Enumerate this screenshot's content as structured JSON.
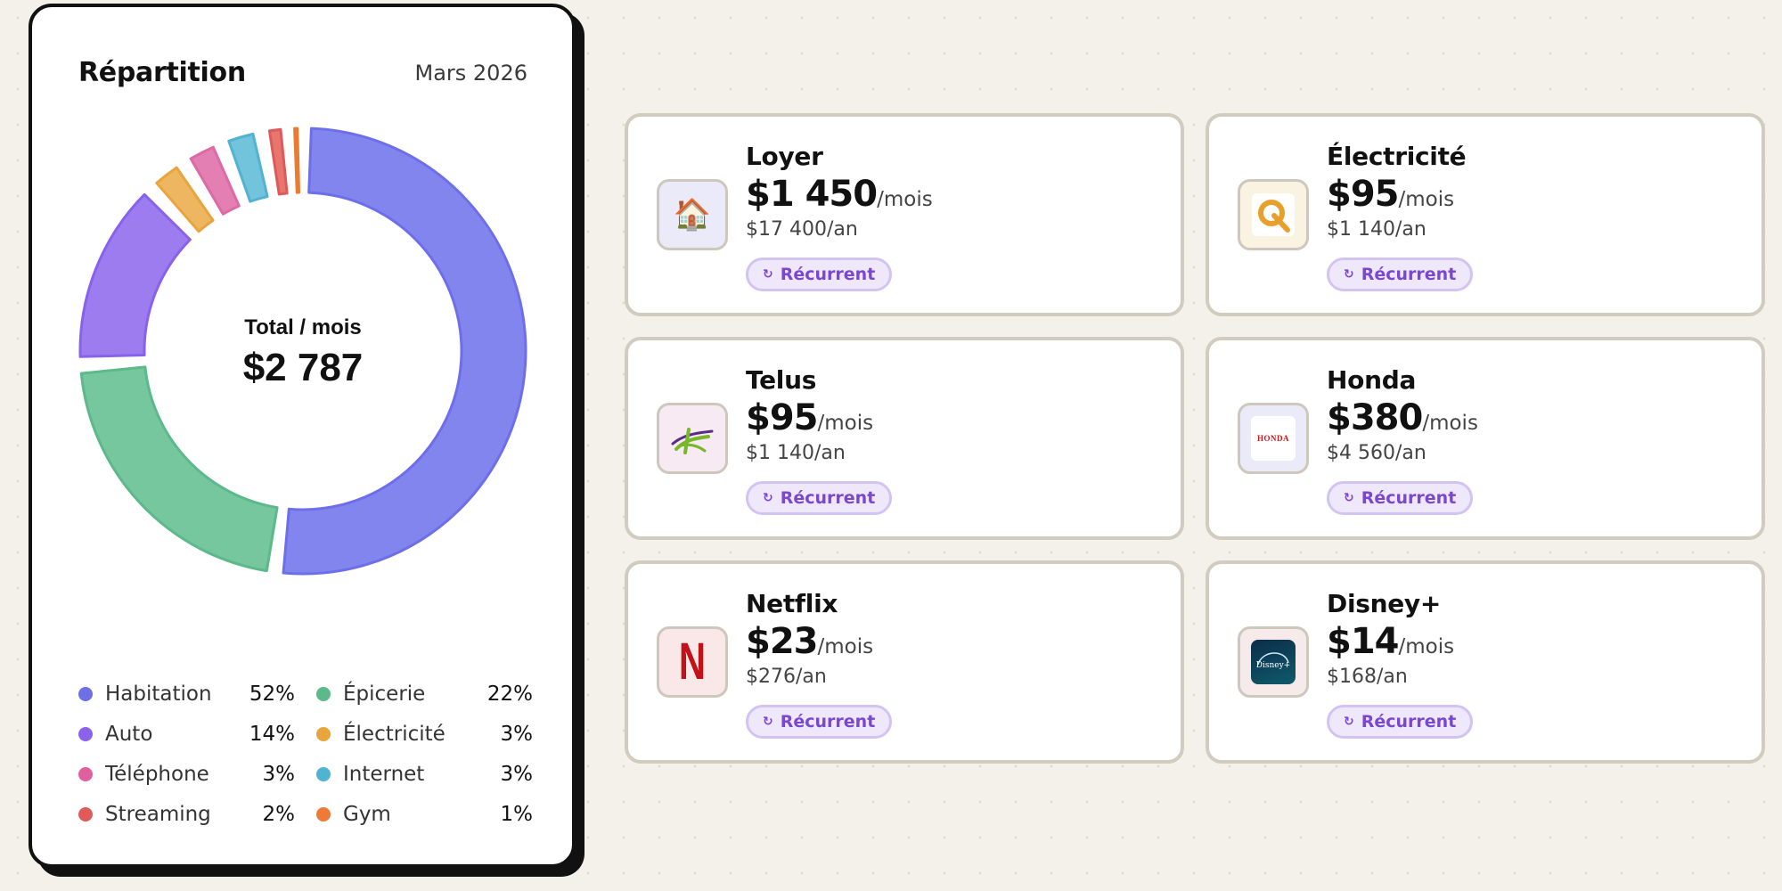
{
  "breakdown": {
    "title": "Répartition",
    "period": "Mars 2026",
    "center": {
      "label": "Total / mois",
      "value": "$2 787"
    },
    "legend": [
      {
        "name": "Habitation",
        "pct": "52%",
        "color": "#6e6ee6"
      },
      {
        "name": "Épicerie",
        "pct": "22%",
        "color": "#5bb98a"
      },
      {
        "name": "Auto",
        "pct": "14%",
        "color": "#8a63ea"
      },
      {
        "name": "Électricité",
        "pct": "3%",
        "color": "#e8a53e"
      },
      {
        "name": "Téléphone",
        "pct": "3%",
        "color": "#e0609e"
      },
      {
        "name": "Internet",
        "pct": "3%",
        "color": "#4fb3d4"
      },
      {
        "name": "Streaming",
        "pct": "2%",
        "color": "#e05a5a"
      },
      {
        "name": "Gym",
        "pct": "1%",
        "color": "#ee7a35"
      }
    ]
  },
  "chart_data": {
    "type": "pie",
    "variant": "donut",
    "title": "Répartition",
    "categories": [
      "Habitation",
      "Épicerie",
      "Auto",
      "Électricité",
      "Téléphone",
      "Internet",
      "Streaming",
      "Gym"
    ],
    "values": [
      52,
      22,
      14,
      3,
      3,
      3,
      2,
      1
    ],
    "fill_colors": [
      "#8385ee",
      "#76c69e",
      "#9d7cf0",
      "#eeb661",
      "#e47fb3",
      "#72c3dc",
      "#e8766f",
      "#f19a57"
    ],
    "stroke_colors": [
      "#6d6eea",
      "#5bb98a",
      "#8762ea",
      "#e8a53e",
      "#dc6aa5",
      "#52b2d1",
      "#de5a58",
      "#ea7b33"
    ]
  },
  "subscriptions": [
    {
      "name": "Loyer",
      "amount": "$1 450",
      "unit": "/mois",
      "yearly": "$17 400/an",
      "badge": "Récurrent",
      "icon": "house-icon",
      "icon_glyph": "🏠",
      "logo_bg": "#ebeaf8"
    },
    {
      "name": "Électricité",
      "amount": "$95",
      "unit": "/mois",
      "yearly": "$1 140/an",
      "badge": "Récurrent",
      "icon": "hydro-quebec-logo-icon",
      "logo_bg": "#fbf3e2"
    },
    {
      "name": "Telus",
      "amount": "$95",
      "unit": "/mois",
      "yearly": "$1 140/an",
      "badge": "Récurrent",
      "icon": "telus-logo-icon",
      "logo_bg": "#f7eaf3"
    },
    {
      "name": "Honda",
      "amount": "$380",
      "unit": "/mois",
      "yearly": "$4 560/an",
      "badge": "Récurrent",
      "icon": "honda-logo-icon",
      "logo_text": "HONDA",
      "logo_bg": "#ebeaf8"
    },
    {
      "name": "Netflix",
      "amount": "$23",
      "unit": "/mois",
      "yearly": "$276/an",
      "badge": "Récurrent",
      "icon": "netflix-logo-icon",
      "logo_text": "N",
      "logo_bg": "#fae8e8"
    },
    {
      "name": "Disney+",
      "amount": "$14",
      "unit": "/mois",
      "yearly": "$168/an",
      "badge": "Récurrent",
      "icon": "disney-plus-logo-icon",
      "logo_text": "Disney+",
      "logo_bg": "#f7eaea"
    }
  ],
  "badge_icon": "↻"
}
